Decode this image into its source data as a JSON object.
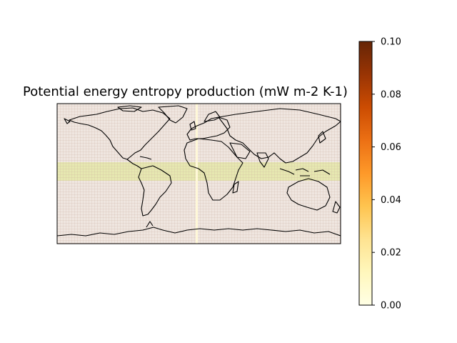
{
  "figure": {
    "title": "Potential energy entropy production (mW m-2 K-1)"
  },
  "map": {
    "projection": "plate-carree",
    "extent_lon": [
      -180,
      180
    ],
    "extent_lat": [
      -90,
      90
    ],
    "grid_on": true,
    "coastline_color": "#000000",
    "background_color": "#efe6e0",
    "grid_color": "#c8a898",
    "tropical_band": {
      "lat_range": [
        -8,
        8
      ],
      "color": "#e4e8a8",
      "approx_value": 0.01
    },
    "meridian_stripe": {
      "lon": 0,
      "color": "#fff8d8"
    }
  },
  "colorbar": {
    "cmap": "YlOrBr",
    "vmin": 0.0,
    "vmax": 0.1,
    "ticks": [
      "0.00",
      "0.02",
      "0.04",
      "0.06",
      "0.08",
      "0.10"
    ],
    "colors": [
      "#ffffe5",
      "#fff7bc",
      "#fee391",
      "#fec44f",
      "#fe9929",
      "#ec7014",
      "#cc4c02",
      "#993404",
      "#662506"
    ]
  }
}
